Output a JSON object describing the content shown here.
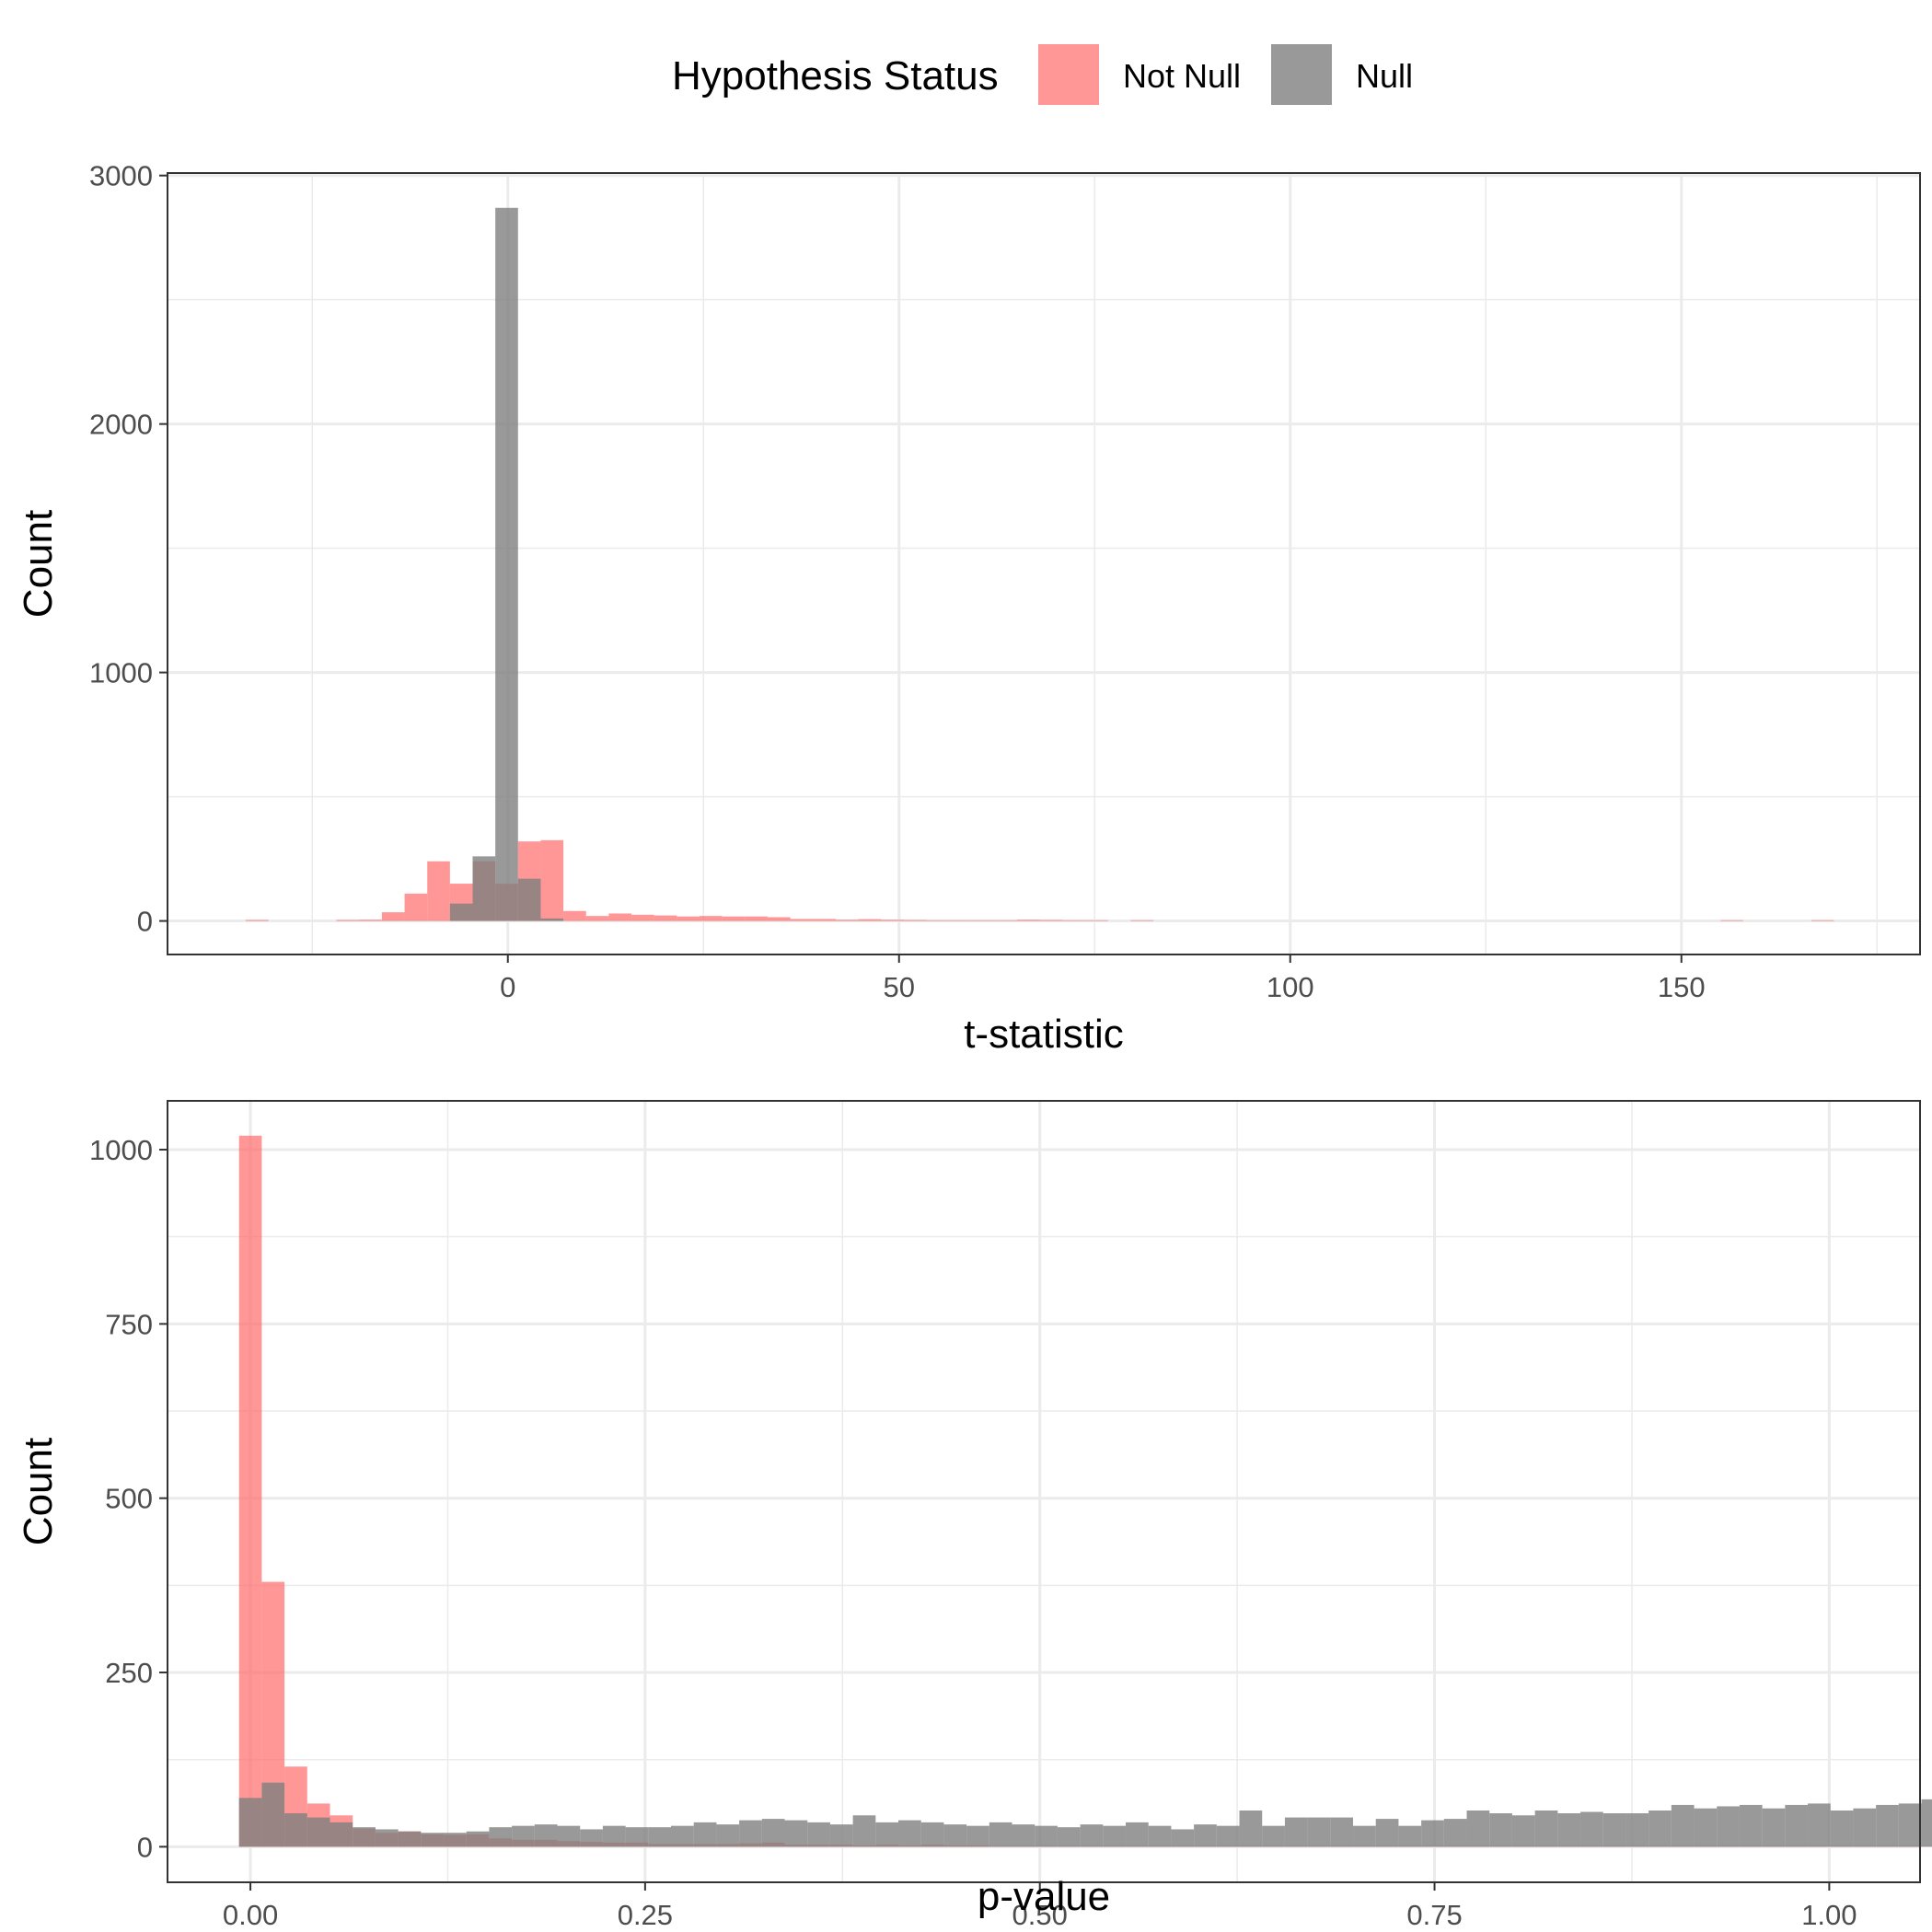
{
  "legend": {
    "title": "Hypothesis Status",
    "items": [
      {
        "label": "Not Null",
        "color": "#FF6B6B"
      },
      {
        "label": "Null",
        "color": "#7F7F7F"
      }
    ]
  },
  "chart_data": [
    {
      "type": "bar",
      "subtype": "histogram",
      "xlabel": "t-statistic",
      "ylabel": "Count",
      "xlim": [
        -43.5,
        180.5
      ],
      "ylim": [
        -135,
        3010
      ],
      "xticks": [
        0,
        50,
        100,
        150
      ],
      "yticks": [
        0,
        1000,
        2000,
        3000
      ],
      "grid": true,
      "bin_width": 2.9,
      "series": [
        {
          "name": "Not Null",
          "color": "#FF6B6B",
          "opacity": 0.7,
          "bins": [
            [
              -33.5,
              -30.6,
              4
            ],
            [
              -21.9,
              -19.0,
              4
            ],
            [
              -19.0,
              -16.1,
              5
            ],
            [
              -16.1,
              -13.2,
              35
            ],
            [
              -13.2,
              -10.3,
              110
            ],
            [
              -10.3,
              -7.4,
              240
            ],
            [
              -7.4,
              -4.5,
              150
            ],
            [
              -4.5,
              -1.6,
              240
            ],
            [
              -1.6,
              1.3,
              150
            ],
            [
              1.3,
              4.2,
              320
            ],
            [
              4.2,
              7.1,
              325
            ],
            [
              7.1,
              10.0,
              40
            ],
            [
              10.0,
              12.9,
              20
            ],
            [
              12.9,
              15.8,
              30
            ],
            [
              15.8,
              18.7,
              25
            ],
            [
              18.7,
              21.6,
              22
            ],
            [
              21.6,
              24.5,
              18
            ],
            [
              24.5,
              27.4,
              20
            ],
            [
              27.4,
              30.3,
              18
            ],
            [
              30.3,
              33.2,
              18
            ],
            [
              33.2,
              36.1,
              15
            ],
            [
              36.1,
              39.0,
              8
            ],
            [
              39.0,
              41.9,
              8
            ],
            [
              41.9,
              44.8,
              5
            ],
            [
              44.8,
              47.7,
              7
            ],
            [
              47.7,
              50.6,
              5
            ],
            [
              50.6,
              53.5,
              4
            ],
            [
              53.5,
              56.4,
              3
            ],
            [
              56.4,
              59.3,
              3
            ],
            [
              59.3,
              62.2,
              3
            ],
            [
              62.2,
              65.1,
              3
            ],
            [
              65.1,
              68.0,
              5
            ],
            [
              68.0,
              70.9,
              4
            ],
            [
              70.9,
              73.8,
              3
            ],
            [
              73.8,
              76.7,
              3
            ],
            [
              79.6,
              82.5,
              3
            ],
            [
              155.0,
              157.9,
              3
            ],
            [
              166.6,
              169.5,
              3
            ]
          ]
        },
        {
          "name": "Null",
          "color": "#7F7F7F",
          "opacity": 0.8,
          "bins": [
            [
              -7.4,
              -4.5,
              70
            ],
            [
              -4.5,
              -1.6,
              260
            ],
            [
              -1.6,
              1.3,
              2870
            ],
            [
              1.3,
              4.2,
              170
            ],
            [
              4.2,
              7.1,
              10
            ]
          ]
        }
      ]
    },
    {
      "type": "bar",
      "subtype": "histogram",
      "xlabel": "p-value",
      "ylabel": "Count",
      "xlim": [
        -0.0525,
        1.0575
      ],
      "ylim": [
        -51,
        1070
      ],
      "xticks": [
        "0.00",
        "0.25",
        "0.50",
        "0.75",
        "1.00"
      ],
      "yticks": [
        0,
        250,
        500,
        750,
        1000
      ],
      "grid": true,
      "bin_start": -0.0072,
      "bin_width": 0.0144,
      "series": [
        {
          "name": "Not Null",
          "color": "#FF6B6B",
          "opacity": 0.7,
          "values": [
            1020,
            380,
            115,
            62,
            45,
            26,
            20,
            22,
            18,
            17,
            18,
            12,
            10,
            10,
            8,
            7,
            6,
            6,
            4,
            4,
            4,
            4,
            5,
            6,
            3,
            3,
            3,
            2,
            3,
            2,
            3,
            2,
            2,
            1,
            1,
            1,
            1,
            1,
            1,
            1,
            1,
            1,
            1,
            1,
            1,
            1,
            1,
            1,
            1,
            1,
            1,
            1,
            1,
            1,
            1,
            1,
            1,
            1,
            1,
            1,
            1,
            1,
            1,
            1,
            1,
            1,
            1,
            1,
            1,
            1,
            1,
            1,
            1,
            1,
            1,
            1,
            1,
            1,
            1,
            1,
            1,
            1,
            1,
            1,
            1,
            1,
            1,
            1,
            1
          ]
        },
        {
          "name": "Null",
          "color": "#7F7F7F",
          "opacity": 0.8,
          "values": [
            70,
            92,
            48,
            42,
            35,
            28,
            25,
            22,
            20,
            20,
            22,
            28,
            30,
            32,
            30,
            25,
            30,
            28,
            28,
            30,
            35,
            32,
            38,
            40,
            38,
            35,
            32,
            45,
            35,
            38,
            35,
            32,
            30,
            35,
            32,
            30,
            28,
            32,
            30,
            35,
            30,
            25,
            32,
            30,
            52,
            30,
            42,
            42,
            42,
            30,
            40,
            30,
            38,
            40,
            52,
            48,
            45,
            52,
            48,
            50,
            48,
            48,
            52,
            60,
            55,
            58,
            60,
            55,
            60,
            62,
            52,
            55,
            60,
            62,
            68,
            78,
            68,
            68,
            70,
            78,
            80,
            90,
            88,
            82,
            80,
            78,
            80,
            90,
            98,
            92,
            80,
            75,
            90,
            48
          ]
        }
      ]
    }
  ]
}
